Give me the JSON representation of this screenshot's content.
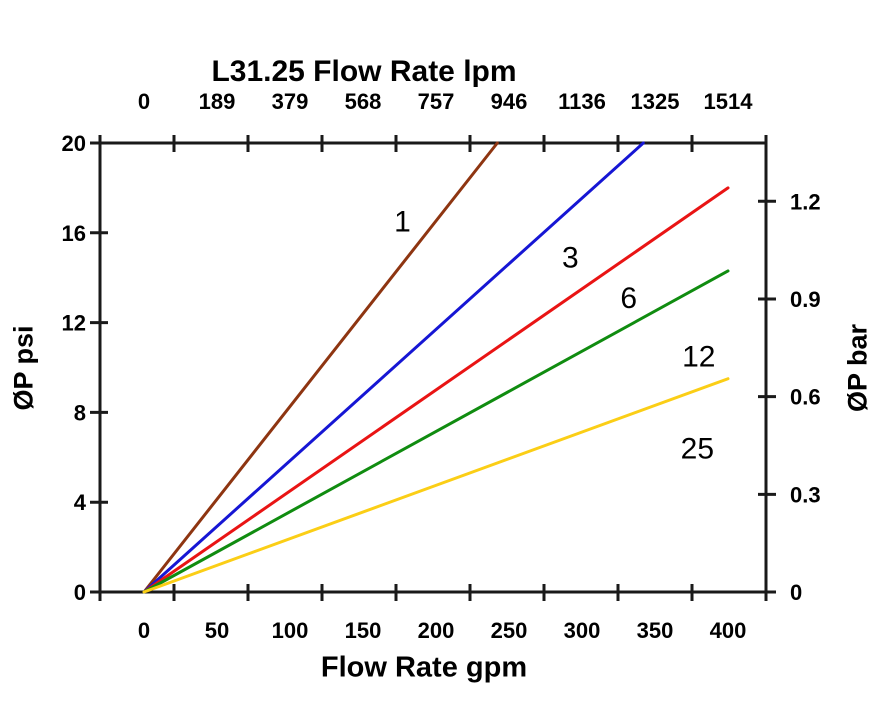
{
  "title": "L31.25 Flow Rate lpm",
  "colors": {
    "background": "#ffffff",
    "axis": "#1a1a1a",
    "text": "#000000"
  },
  "chart_data": {
    "type": "line",
    "title": "L31.25 Flow Rate lpm",
    "grid": "off",
    "legend": "inline-curve-labels",
    "x_axis_bottom": {
      "label": "Flow Rate gpm",
      "tick_values": [
        0,
        50,
        100,
        150,
        200,
        250,
        300,
        350,
        400
      ],
      "range_gpm": [
        -30,
        426
      ]
    },
    "x_axis_top": {
      "label": "L31.25 Flow Rate lpm",
      "tick_labels": [
        "0",
        "189",
        "379",
        "568",
        "757",
        "946",
        "1136",
        "1325",
        "1514"
      ],
      "unit": "lpm"
    },
    "y_axis_left": {
      "label": "ØP psi",
      "tick_values": [
        0,
        4,
        8,
        12,
        16,
        20
      ],
      "range_psi": [
        0,
        20
      ]
    },
    "y_axis_right": {
      "label": "ØP bar",
      "tick_values": [
        0,
        0.3,
        0.6,
        0.9,
        1.2
      ],
      "psi_per_bar": 14.5038
    },
    "series": [
      {
        "name": "1",
        "color": "#8e3511",
        "points_gpm_psi": [
          [
            0,
            0
          ],
          [
            242,
            20.0
          ]
        ],
        "label_at_gpm_psi": [
          177,
          16.5
        ]
      },
      {
        "name": "3",
        "color": "#1616d4",
        "points_gpm_psi": [
          [
            0,
            0
          ],
          [
            342,
            20.0
          ]
        ],
        "label_at_gpm_psi": [
          292,
          14.9
        ]
      },
      {
        "name": "6",
        "color": "#e91414",
        "points_gpm_psi": [
          [
            0,
            0
          ],
          [
            400,
            18.0
          ]
        ],
        "label_at_gpm_psi": [
          332,
          13.1
        ]
      },
      {
        "name": "12",
        "color": "#108c10",
        "points_gpm_psi": [
          [
            0,
            0
          ],
          [
            400,
            14.3
          ]
        ],
        "label_at_gpm_psi": [
          380,
          10.5
        ]
      },
      {
        "name": "25",
        "color": "#fbce16",
        "points_gpm_psi": [
          [
            0,
            0
          ],
          [
            400,
            9.5
          ]
        ],
        "label_at_gpm_psi": [
          379,
          6.4
        ]
      }
    ]
  }
}
